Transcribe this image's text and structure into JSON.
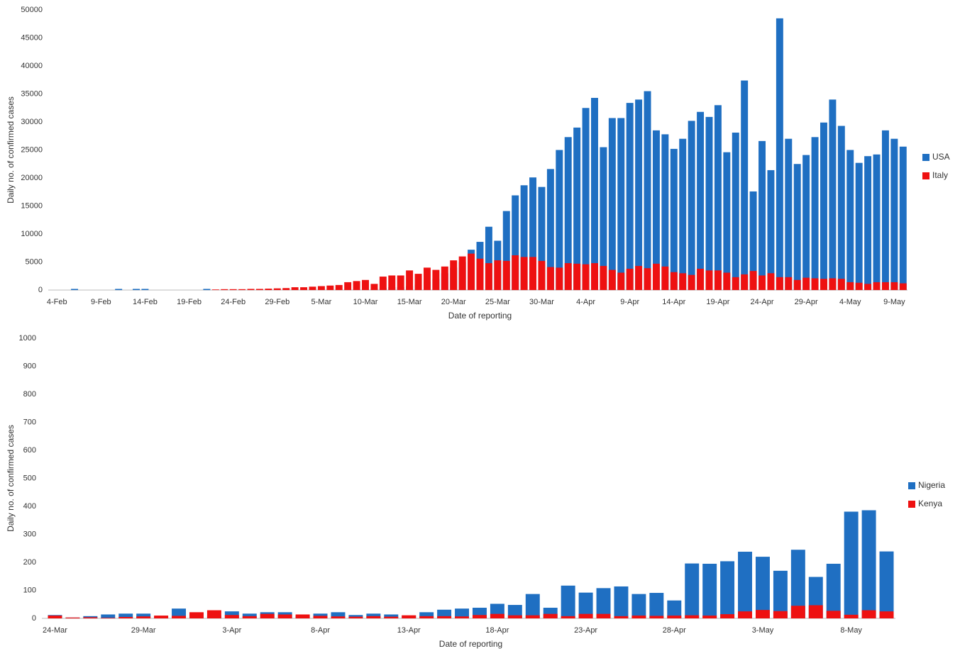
{
  "chart_data": [
    {
      "type": "bar",
      "barmode": "overlay",
      "x_label": "Date of reporting",
      "y_label": "Daily no. of confirmed cases",
      "categories": [
        "4-Feb",
        null,
        null,
        null,
        null,
        "9-Feb",
        null,
        null,
        null,
        null,
        "14-Feb",
        null,
        null,
        null,
        null,
        "19-Feb",
        null,
        null,
        null,
        null,
        "24-Feb",
        null,
        null,
        null,
        null,
        "29-Feb",
        null,
        null,
        null,
        null,
        "5-Mar",
        null,
        null,
        null,
        null,
        "10-Mar",
        null,
        null,
        null,
        null,
        "15-Mar",
        null,
        null,
        null,
        null,
        "20-Mar",
        null,
        null,
        null,
        null,
        "25-Mar",
        null,
        null,
        null,
        null,
        "30-Mar",
        null,
        null,
        null,
        null,
        "4-Apr",
        null,
        null,
        null,
        null,
        "9-Apr",
        null,
        null,
        null,
        null,
        "14-Apr",
        null,
        null,
        null,
        null,
        "19-Apr",
        null,
        null,
        null,
        null,
        "24-Apr",
        null,
        null,
        null,
        null,
        "29-Apr",
        null,
        null,
        null,
        null,
        "4-May",
        null,
        null,
        null,
        null,
        "9-May",
        null
      ],
      "series": [
        {
          "name": "USA",
          "color": "#1f6fc2",
          "values": [
            0,
            0,
            200,
            0,
            0,
            0,
            0,
            200,
            0,
            200,
            200,
            0,
            0,
            0,
            0,
            0,
            0,
            200,
            0,
            0,
            0,
            0,
            0,
            0,
            0,
            0,
            0,
            0,
            0,
            0,
            0,
            0,
            0,
            100,
            100,
            200,
            300,
            400,
            500,
            500,
            700,
            1000,
            1500,
            2000,
            3000,
            4000,
            5000,
            7200,
            8600,
            11300,
            8800,
            14100,
            16900,
            18700,
            20100,
            18400,
            21600,
            25000,
            27300,
            29000,
            32500,
            34300,
            25500,
            30700,
            30700,
            33400,
            34000,
            35500,
            28500,
            27800,
            25200,
            27000,
            30200,
            31800,
            30900,
            33000,
            24600,
            28100,
            37400,
            17600,
            26600,
            21400,
            48500,
            27000,
            22500,
            24100,
            27300,
            29900,
            34000,
            29300,
            25000,
            22700,
            23900,
            24200,
            28500,
            27000,
            25600
          ]
        },
        {
          "name": "Italy",
          "color": "#ee1111",
          "values": [
            0,
            0,
            0,
            0,
            0,
            0,
            0,
            0,
            0,
            0,
            0,
            0,
            0,
            0,
            0,
            0,
            0,
            0,
            100,
            150,
            150,
            150,
            200,
            200,
            250,
            300,
            350,
            500,
            500,
            600,
            700,
            800,
            900,
            1400,
            1600,
            1800,
            1100,
            2400,
            2600,
            2600,
            3500,
            2900,
            4000,
            3600,
            4200,
            5300,
            6000,
            6500,
            5600,
            4800,
            5300,
            5200,
            6200,
            5900,
            5900,
            5200,
            4100,
            4000,
            4800,
            4700,
            4600,
            4800,
            4300,
            3600,
            3100,
            3800,
            4300,
            3900,
            4700,
            4200,
            3200,
            3000,
            2700,
            3800,
            3500,
            3500,
            3100,
            2300,
            2800,
            3400,
            2600,
            3000,
            2300,
            2300,
            1800,
            2200,
            2100,
            2000,
            2100,
            2000,
            1400,
            1300,
            1100,
            1400,
            1400,
            1400,
            1200
          ]
        }
      ],
      "ylim": [
        0,
        50000
      ],
      "yticks": [
        0,
        5000,
        10000,
        15000,
        20000,
        25000,
        30000,
        35000,
        40000,
        45000,
        50000
      ],
      "grid": false,
      "legend": "right"
    },
    {
      "type": "bar",
      "barmode": "overlay",
      "x_label": "Date of reporting",
      "y_label": "Daily no. of confirmed cases",
      "categories": [
        "24-Mar",
        null,
        null,
        null,
        null,
        "29-Mar",
        null,
        null,
        null,
        null,
        "3-Apr",
        null,
        null,
        null,
        null,
        "8-Apr",
        null,
        null,
        null,
        null,
        "13-Apr",
        null,
        null,
        null,
        null,
        "18-Apr",
        null,
        null,
        null,
        null,
        "23-Apr",
        null,
        null,
        null,
        null,
        "28-Apr",
        null,
        null,
        null,
        null,
        "3-May",
        null,
        null,
        null,
        null,
        "8-May",
        null,
        null
      ],
      "series": [
        {
          "name": "Nigeria",
          "color": "#1f6fc2",
          "values": [
            12,
            3,
            8,
            14,
            17,
            17,
            5,
            35,
            20,
            10,
            25,
            17,
            22,
            22,
            10,
            17,
            22,
            12,
            17,
            14,
            10,
            22,
            31,
            35,
            38,
            52,
            48,
            87,
            38,
            117,
            92,
            108,
            114,
            87,
            91,
            64,
            196,
            195,
            204,
            238,
            220,
            170,
            245,
            148,
            195,
            381,
            386,
            239
          ]
        },
        {
          "name": "Kenya",
          "color": "#ee1111",
          "values": [
            10,
            3,
            4,
            2,
            5,
            7,
            10,
            9,
            22,
            29,
            12,
            8,
            16,
            14,
            14,
            9,
            7,
            6,
            8,
            6,
            11,
            8,
            8,
            7,
            12,
            16,
            11,
            11,
            16,
            8,
            16,
            16,
            8,
            10,
            9,
            10,
            11,
            10,
            15,
            25,
            30,
            26,
            45,
            47,
            27,
            13,
            29,
            25
          ]
        }
      ],
      "ylim": [
        0,
        1000
      ],
      "yticks": [
        0,
        100,
        200,
        300,
        400,
        500,
        600,
        700,
        800,
        900,
        1000
      ],
      "grid": false,
      "legend": "right"
    }
  ]
}
